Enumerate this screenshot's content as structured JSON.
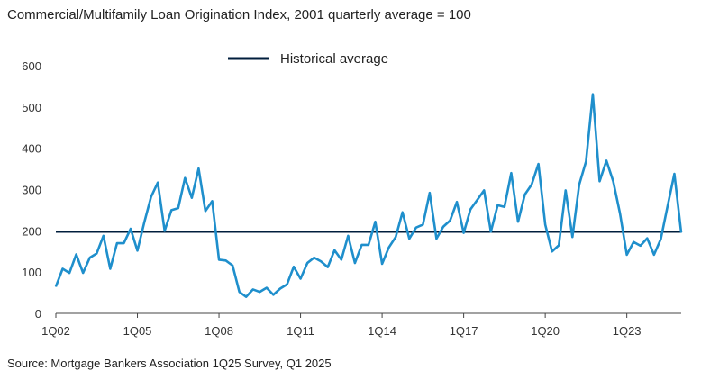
{
  "title": "Commercial/Multifamily Loan Origination Index, 2001 quarterly average = 100",
  "source": "Source: Mortgage Bankers Association 1Q25 Survey, Q1 2025",
  "chart_data": {
    "type": "line",
    "title": "Commercial/Multifamily Loan Origination Index, 2001 quarterly average = 100",
    "xlabel": "",
    "ylabel": "",
    "ylim": [
      0,
      600
    ],
    "yticks": [
      0,
      100,
      200,
      300,
      400,
      500,
      600
    ],
    "xtick_labels": [
      "1Q02",
      "1Q05",
      "1Q08",
      "1Q11",
      "1Q14",
      "1Q17",
      "1Q20",
      "1Q23"
    ],
    "xtick_index": [
      0,
      12,
      24,
      36,
      48,
      60,
      72,
      84
    ],
    "grid": false,
    "legend": "top-center",
    "reference_line": {
      "name": "Historical average",
      "value": 198,
      "color": "#001e3c"
    },
    "series": [
      {
        "color": "#1f8fcc",
        "values": [
          65,
          108,
          98,
          143,
          98,
          135,
          145,
          188,
          108,
          170,
          170,
          205,
          152,
          220,
          282,
          317,
          200,
          250,
          255,
          328,
          280,
          351,
          248,
          272,
          130,
          128,
          116,
          52,
          40,
          58,
          52,
          62,
          45,
          60,
          70,
          113,
          84,
          122,
          135,
          126,
          112,
          153,
          130,
          188,
          122,
          166,
          166,
          222,
          120,
          160,
          185,
          245,
          181,
          208,
          215,
          292,
          181,
          210,
          225,
          270,
          195,
          252,
          275,
          298,
          198,
          262,
          258,
          340,
          222,
          288,
          312,
          362,
          215,
          150,
          165,
          298,
          185,
          312,
          368,
          531,
          320,
          370,
          320,
          242,
          142,
          173,
          164,
          182,
          142,
          180,
          260,
          338,
          196
        ]
      }
    ]
  }
}
